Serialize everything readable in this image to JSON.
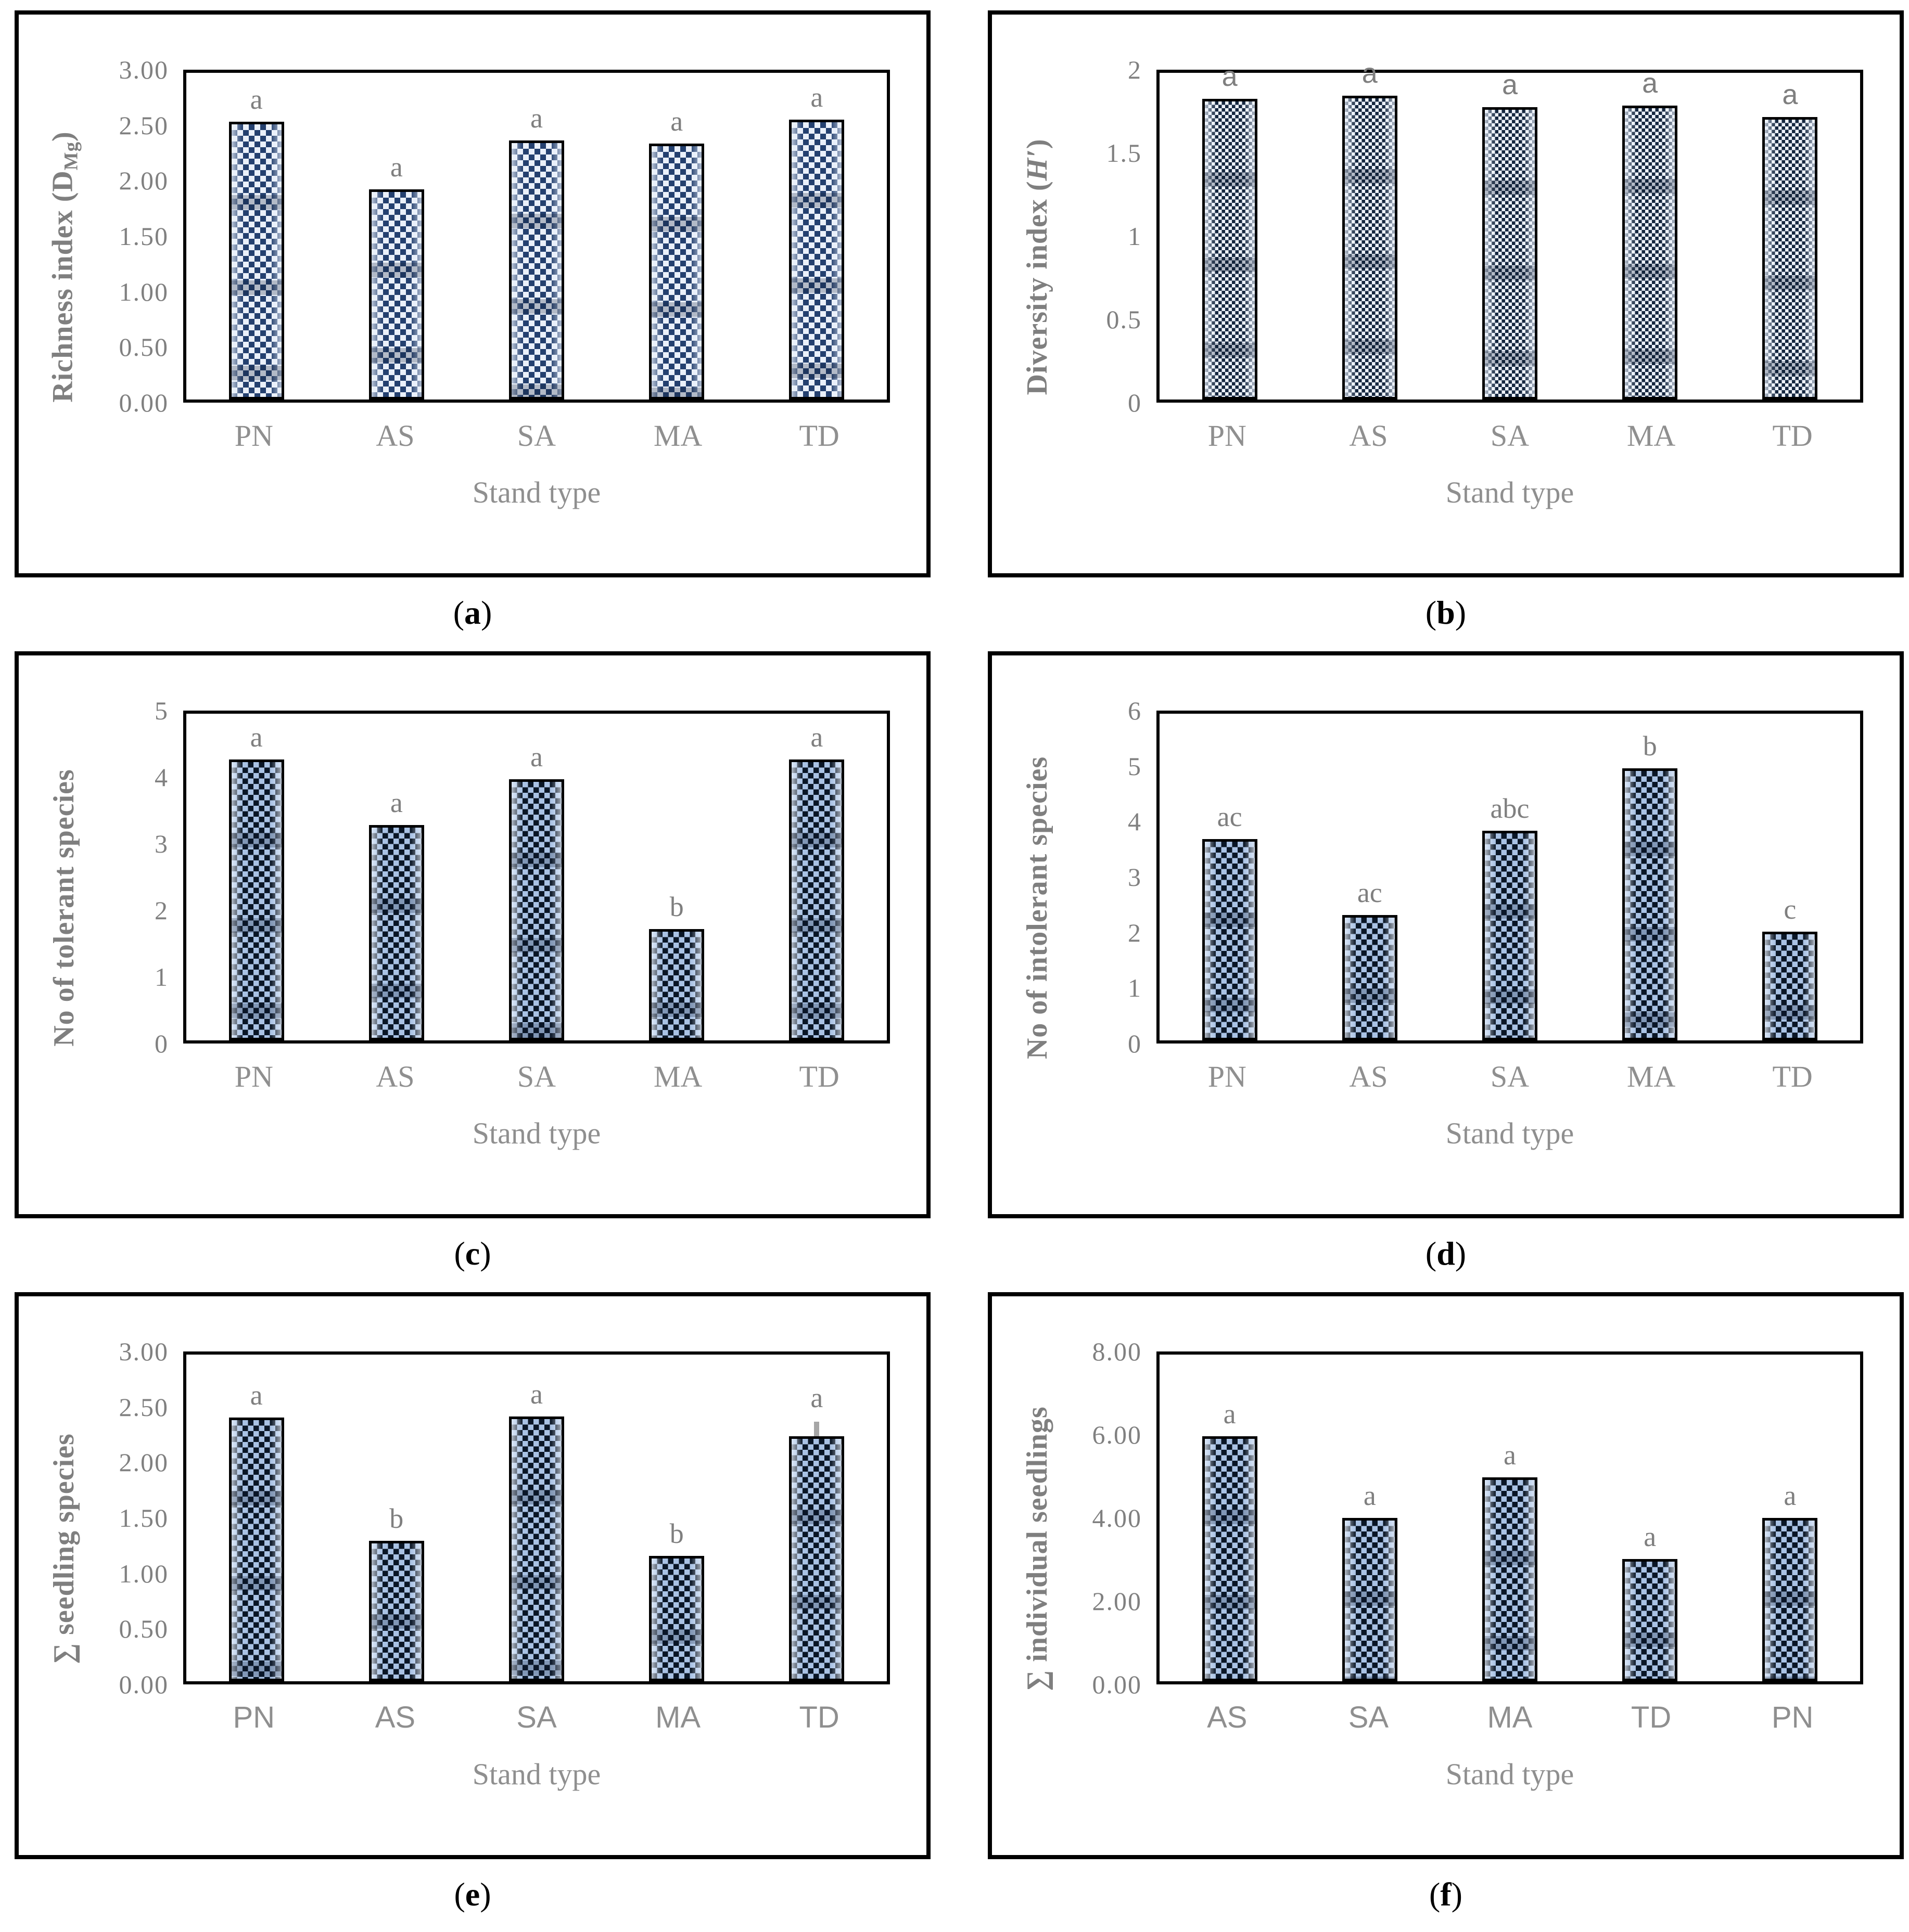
{
  "figure": {
    "xlabel_shared": "Stand type",
    "style": {
      "bar_outline": "#000000",
      "pattern_dark_navy": "#0a1626",
      "pattern_light_blue": "#a9c2e4",
      "pattern_pale": "#eaf0fa",
      "text_gray": "#7f7f7f",
      "category_gray": "#8f8f8f",
      "error_bar_gray": "#a6a6a6"
    }
  },
  "chart_data": [
    {
      "type": "bar",
      "caption": "(a)",
      "caption_pre": "(",
      "caption_letter": "a",
      "caption_post": ")",
      "ylabel": "Richness index (DMg)",
      "ylabel_parts": [
        {
          "t": "Richness index (D"
        },
        {
          "t": "Mg",
          "s": "sub"
        },
        {
          "t": ")"
        }
      ],
      "xlabel": "Stand type",
      "ylim": [
        0,
        3
      ],
      "yticks": [
        "0.00",
        "0.50",
        "1.00",
        "1.50",
        "2.00",
        "2.50",
        "3.00"
      ],
      "categories": [
        "PN",
        "AS",
        "SA",
        "MA",
        "TD"
      ],
      "values": [
        2.55,
        1.93,
        2.38,
        2.35,
        2.57
      ],
      "sig_labels": [
        "a",
        "a",
        "a",
        "a",
        "a"
      ],
      "errors_up": [
        0,
        0,
        0,
        0,
        0
      ],
      "pattern": "light-check",
      "category_font": "serif",
      "sig_font": "serif",
      "grid": false,
      "legend": null
    },
    {
      "type": "bar",
      "caption": "(b)",
      "caption_pre": "(",
      "caption_letter": "b",
      "caption_post": ")",
      "ylabel": "Diversity index (H′)",
      "ylabel_parts": [
        {
          "t": "Diversity index ("
        },
        {
          "t": "H′",
          "s": "i"
        },
        {
          "t": ")"
        }
      ],
      "xlabel": "Stand type",
      "ylim": [
        0,
        2
      ],
      "yticks": [
        "0",
        "0.5",
        "1",
        "1.5",
        "2"
      ],
      "categories": [
        "PN",
        "AS",
        "SA",
        "MA",
        "TD"
      ],
      "values": [
        1.84,
        1.86,
        1.79,
        1.8,
        1.73
      ],
      "sig_labels": [
        "a",
        "a",
        "a",
        "a",
        "a"
      ],
      "errors_up": [
        0,
        0,
        0,
        0,
        0
      ],
      "pattern": "fine-check",
      "category_font": "serif",
      "sig_font": "sans",
      "grid": false,
      "legend": null
    },
    {
      "type": "bar",
      "caption": "(c)",
      "caption_pre": "(",
      "caption_letter": "c",
      "caption_post": ")",
      "ylabel": "No of tolerant species",
      "ylabel_parts": [
        {
          "t": "No of tolerant species"
        }
      ],
      "xlabel": "Stand type",
      "ylim": [
        0,
        5
      ],
      "yticks": [
        "0",
        "1",
        "2",
        "3",
        "4",
        "5"
      ],
      "categories": [
        "PN",
        "AS",
        "SA",
        "MA",
        "TD"
      ],
      "values": [
        4.3,
        3.3,
        4.0,
        1.7,
        4.3
      ],
      "sig_labels": [
        "a",
        "a",
        "a",
        "b",
        "a"
      ],
      "errors_up": [
        0,
        0,
        0,
        0,
        0
      ],
      "pattern": "dark-check",
      "category_font": "serif",
      "sig_font": "serif",
      "grid": false,
      "legend": null
    },
    {
      "type": "bar",
      "caption": "(d)",
      "caption_pre": "(",
      "caption_letter": "d",
      "caption_post": ")",
      "ylabel": "No of intolerant species",
      "ylabel_parts": [
        {
          "t": "No of intolerant species"
        }
      ],
      "xlabel": "Stand type",
      "ylim": [
        0,
        6
      ],
      "yticks": [
        "0",
        "1",
        "2",
        "3",
        "4",
        "5",
        "6"
      ],
      "categories": [
        "PN",
        "AS",
        "SA",
        "MA",
        "TD"
      ],
      "values": [
        3.7,
        2.3,
        3.85,
        5.0,
        2.0
      ],
      "sig_labels": [
        "ac",
        "ac",
        "abc",
        "b",
        "c"
      ],
      "errors_up": [
        0,
        0,
        0,
        0,
        0
      ],
      "pattern": "dark-check",
      "category_font": "serif",
      "sig_font": "serif",
      "grid": false,
      "legend": null
    },
    {
      "type": "bar",
      "caption": "(e)",
      "caption_pre": "(",
      "caption_letter": "e",
      "caption_post": ")",
      "ylabel": "∑ seedling species",
      "ylabel_parts": [
        {
          "t": "∑ seedling species"
        }
      ],
      "xlabel": "Stand type",
      "ylim": [
        0,
        3
      ],
      "yticks": [
        "0.00",
        "0.50",
        "1.00",
        "1.50",
        "2.00",
        "2.50",
        "3.00"
      ],
      "categories": [
        "PN",
        "AS",
        "SA",
        "MA",
        "TD"
      ],
      "values": [
        2.42,
        1.29,
        2.43,
        1.15,
        2.25
      ],
      "sig_labels": [
        "a",
        "b",
        "a",
        "b",
        "a"
      ],
      "errors_up": [
        0,
        0,
        0,
        0,
        0.15
      ],
      "pattern": "dark-check",
      "category_font": "sans",
      "sig_font": "serif",
      "grid": false,
      "legend": null
    },
    {
      "type": "bar",
      "caption": "(f)",
      "caption_pre": "(",
      "caption_letter": "f",
      "caption_post": ")",
      "ylabel": "∑ individual seedlings",
      "ylabel_parts": [
        {
          "t": "∑ individual seedlings"
        }
      ],
      "xlabel": "Stand type",
      "ylim": [
        0,
        8
      ],
      "yticks": [
        "0.00",
        "2.00",
        "4.00",
        "6.00",
        "8.00"
      ],
      "categories": [
        "AS",
        "SA",
        "MA",
        "TD",
        "PN"
      ],
      "values": [
        6.0,
        4.0,
        5.0,
        3.0,
        4.0
      ],
      "sig_labels": [
        "a",
        "a",
        "a",
        "a",
        "a"
      ],
      "errors_up": [
        0,
        0,
        0,
        0,
        0
      ],
      "pattern": "dark-check",
      "category_font": "sans",
      "sig_font": "serif",
      "grid": false,
      "legend": null
    }
  ]
}
